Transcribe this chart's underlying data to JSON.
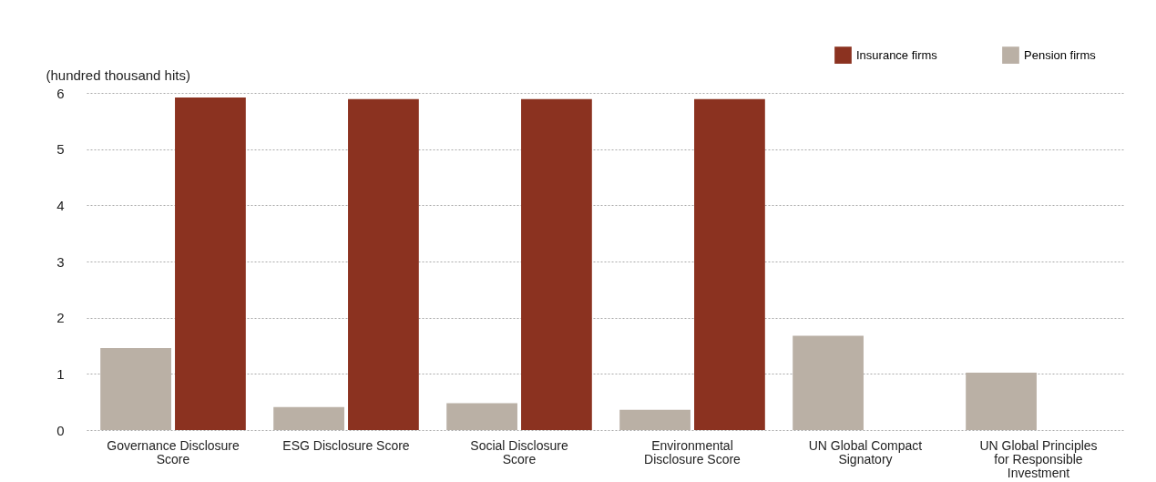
{
  "chart_data": {
    "type": "bar",
    "ylabel": "(hundred thousand hits)",
    "categories": [
      "Governance Disclosure Score",
      "ESG Disclosure Score",
      "Social Disclosure Score",
      "Environmental Disclosure Score",
      "UN Global Compact Signatory",
      "UN Global Principles for Responsible Investment"
    ],
    "series": [
      {
        "name": "Pension firms",
        "color": "#bab0a5",
        "values": [
          1.46,
          0.41,
          0.48,
          0.36,
          1.68,
          1.02
        ]
      },
      {
        "name": "Insurance firms",
        "color": "#8b3220",
        "values": [
          5.92,
          5.89,
          5.89,
          5.89,
          null,
          null
        ]
      }
    ],
    "ylim": [
      0,
      6
    ],
    "yticks": [
      0,
      1,
      2,
      3,
      4,
      5,
      6
    ],
    "grid": "y",
    "legend": "top right"
  }
}
